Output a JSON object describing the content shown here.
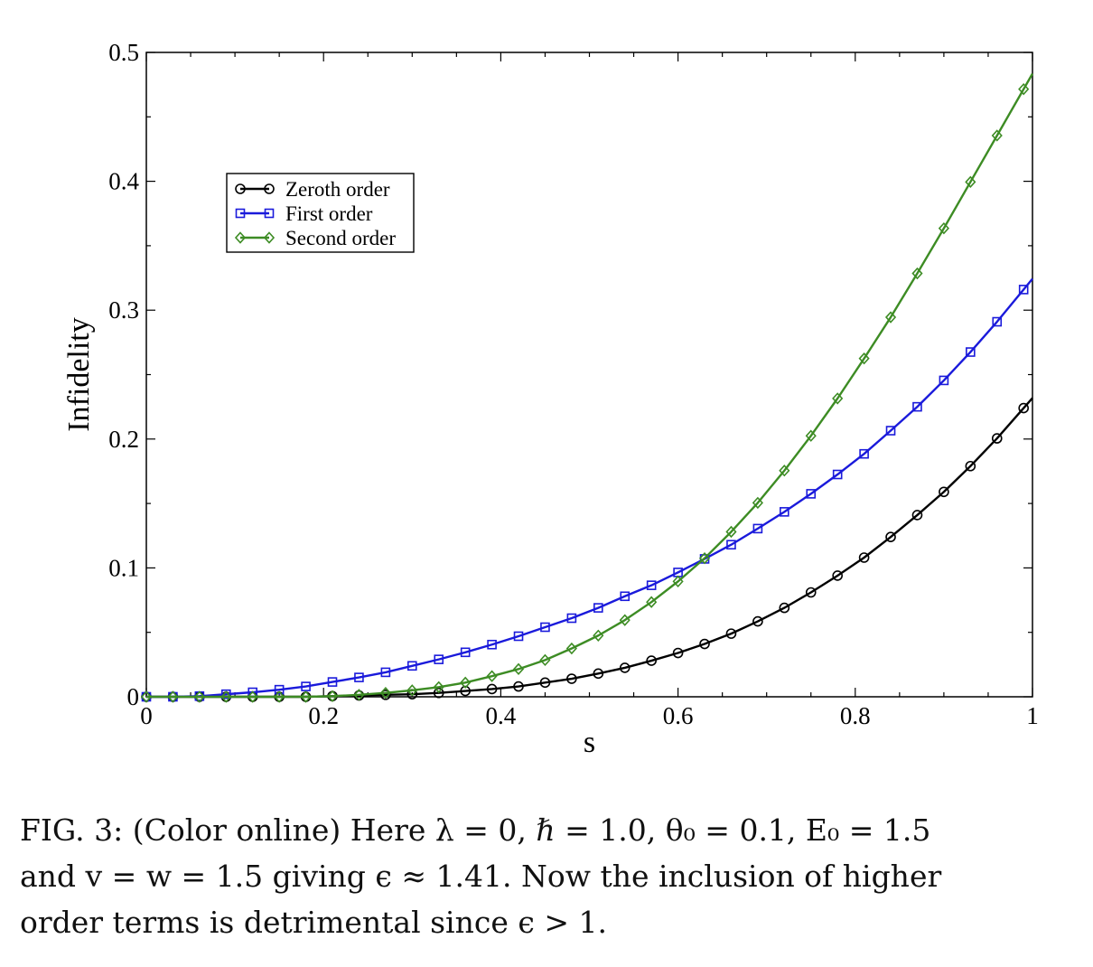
{
  "chart_data": {
    "type": "line",
    "title": "",
    "xlabel": "s",
    "ylabel": "Infidelity",
    "xlim": [
      0,
      1
    ],
    "ylim": [
      0,
      0.5
    ],
    "x_ticks": [
      0,
      0.2,
      0.4,
      0.6,
      0.8,
      1
    ],
    "x_tick_labels": [
      "0",
      "0.2",
      "0.4",
      "0.6",
      "0.8",
      "1"
    ],
    "y_ticks": [
      0,
      0.1,
      0.2,
      0.3,
      0.4,
      0.5
    ],
    "y_tick_labels": [
      "0",
      "0.1",
      "0.2",
      "0.3",
      "0.4",
      "0.5"
    ],
    "grid": false,
    "legend_position": "upper-left",
    "x": [
      0,
      0.03,
      0.06,
      0.09,
      0.12,
      0.15,
      0.18,
      0.21,
      0.24,
      0.27,
      0.3,
      0.33,
      0.36,
      0.39,
      0.42,
      0.45,
      0.48,
      0.51,
      0.54,
      0.57,
      0.6,
      0.63,
      0.66,
      0.69,
      0.72,
      0.75,
      0.78,
      0.81,
      0.84,
      0.87,
      0.9,
      0.93,
      0.96,
      0.99
    ],
    "series": [
      {
        "name": "Zeroth order",
        "color": "#000000",
        "marker": "circle",
        "values": [
          0,
          0,
          0,
          0,
          0,
          0,
          0,
          0.0005,
          0.001,
          0.0015,
          0.002,
          0.003,
          0.0045,
          0.006,
          0.008,
          0.011,
          0.014,
          0.018,
          0.0225,
          0.028,
          0.034,
          0.041,
          0.049,
          0.0585,
          0.069,
          0.081,
          0.094,
          0.108,
          0.124,
          0.141,
          0.159,
          0.179,
          0.2005,
          0.224
        ]
      },
      {
        "name": "First order",
        "color": "#1a1adb",
        "marker": "square",
        "values": [
          0,
          0,
          0.0005,
          0.002,
          0.0035,
          0.0055,
          0.008,
          0.0115,
          0.015,
          0.019,
          0.024,
          0.029,
          0.0345,
          0.0405,
          0.047,
          0.054,
          0.061,
          0.069,
          0.078,
          0.0865,
          0.0965,
          0.107,
          0.118,
          0.1305,
          0.1435,
          0.1575,
          0.1725,
          0.1885,
          0.2065,
          0.225,
          0.2455,
          0.2675,
          0.291,
          0.316
        ]
      },
      {
        "name": "Second order",
        "color": "#3d8c24",
        "marker": "diamond",
        "values": [
          0,
          0,
          0,
          0,
          0,
          0,
          0,
          0.0005,
          0.0015,
          0.003,
          0.005,
          0.0075,
          0.011,
          0.016,
          0.0215,
          0.0285,
          0.0375,
          0.0475,
          0.0595,
          0.0735,
          0.0895,
          0.1075,
          0.128,
          0.1505,
          0.1755,
          0.2025,
          0.2315,
          0.2625,
          0.2945,
          0.3285,
          0.3635,
          0.3995,
          0.4355,
          0.4715
        ]
      }
    ]
  },
  "caption": {
    "lines": [
      "FIG. 3: (Color online) Here λ = 0, ℏ = 1.0, θ₀ = 0.1, E₀ = 1.5",
      "and v = w = 1.5 giving ϵ ≈ 1.41.  Now the inclusion of higher",
      "order terms is detrimental since ϵ > 1."
    ]
  }
}
